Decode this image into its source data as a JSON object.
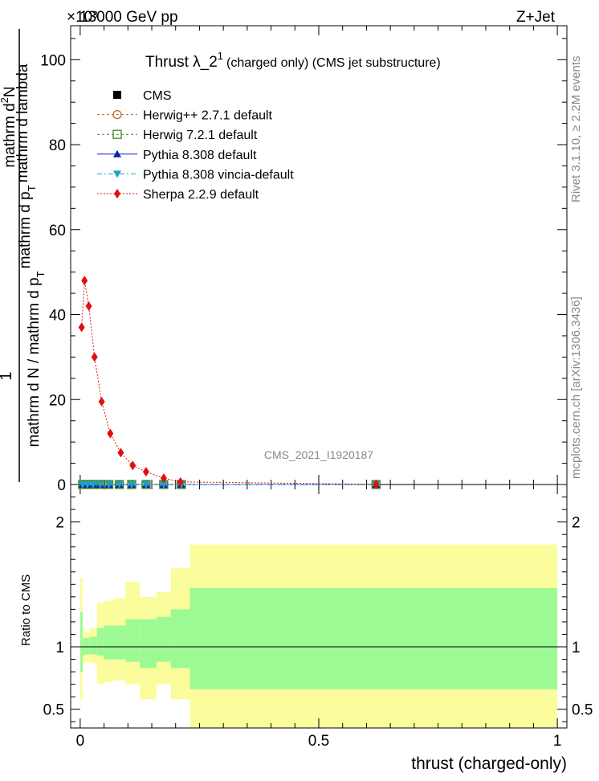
{
  "header": {
    "left": "13000 GeV pp",
    "right": "Z+Jet",
    "exponent": "×10³"
  },
  "side_text": {
    "rivet": "Rivet 3.1.10, ≥ 2.2M events",
    "mcplots": "mcplots.cern.ch [arXiv:1306.3436]"
  },
  "chart_data": [
    {
      "type": "line",
      "title": "Thrust λ_2¹",
      "title_main": "Thrust λ_2",
      "title_sup": "1",
      "title_suffix": "(charged only) (CMS jet substructure)",
      "watermark": "CMS_2021_I1920187",
      "ylabel_numerator": "mathrm d²N",
      "ylabel_denominator": "mathrm d N / mathrm d p_T mathrm d p_T mathrm d lambda",
      "ylabel_parts": {
        "one": "1",
        "den_a": "mathrm d N / mathrm d p",
        "den_sub": "T",
        "den_b": "mathrm d p",
        "den_sub2": "T",
        "den_c": "mathrm d lambda",
        "num": "mathrm d",
        "num_sup": "2",
        "num_b": "N"
      },
      "xlim": [
        -0.02,
        1.02
      ],
      "ylim": [
        0,
        108
      ],
      "y_scale_factor": 1000,
      "yticks": [
        0,
        20,
        40,
        60,
        80,
        100
      ],
      "legend_position": "top-left",
      "series": [
        {
          "name": "CMS",
          "color": "#000000",
          "marker": "square-filled",
          "x": [],
          "y": []
        },
        {
          "name": "Herwig++ 2.7.1 default",
          "color": "#b8682c",
          "marker": "circle-open",
          "x": [
            0.005,
            0.015,
            0.027,
            0.042,
            0.06,
            0.082,
            0.108,
            0.138,
            0.175,
            0.212,
            0.62
          ],
          "y": [
            0,
            0,
            0,
            0,
            0,
            0,
            0,
            0,
            0,
            0,
            0
          ]
        },
        {
          "name": "Herwig 7.2.1 default",
          "color": "#3d8c1e",
          "marker": "square-open",
          "x": [
            0.005,
            0.015,
            0.027,
            0.042,
            0.06,
            0.082,
            0.108,
            0.138,
            0.175,
            0.212,
            0.62
          ],
          "y": [
            0,
            0,
            0,
            0,
            0,
            0,
            0,
            0,
            0,
            0,
            0
          ]
        },
        {
          "name": "Pythia 8.308 default",
          "color": "#0a1fb8",
          "marker": "triangle-up",
          "x": [
            0.005,
            0.015,
            0.027,
            0.042,
            0.06,
            0.082,
            0.108,
            0.138,
            0.175,
            0.212,
            0.62
          ],
          "y": [
            0,
            0,
            0,
            0,
            0,
            0,
            0,
            0,
            0,
            0,
            0
          ]
        },
        {
          "name": "Pythia 8.308 vincia-default",
          "color": "#1aa2c2",
          "marker": "triangle-down",
          "x": [
            0.005,
            0.015,
            0.027,
            0.042,
            0.06,
            0.082,
            0.108,
            0.138,
            0.175,
            0.212,
            0.62
          ],
          "y": [
            0,
            0,
            0,
            0,
            0,
            0,
            0,
            0,
            0,
            0,
            0
          ]
        },
        {
          "name": "Sherpa 2.2.9 default",
          "color": "#e01010",
          "marker": "diamond",
          "x": [
            0.003,
            0.009,
            0.018,
            0.03,
            0.045,
            0.063,
            0.085,
            0.11,
            0.138,
            0.175,
            0.21,
            0.62
          ],
          "y": [
            37,
            48,
            42,
            30,
            19.5,
            12,
            7.5,
            4.5,
            3,
            1.5,
            0.6,
            0.05
          ]
        }
      ]
    },
    {
      "type": "area",
      "ylabel": "Ratio to CMS",
      "xlabel": "thrust (charged-only)",
      "xlim": [
        -0.02,
        1.02
      ],
      "ylim": [
        0.35,
        2.3
      ],
      "yticks": [
        0.5,
        1,
        2
      ],
      "xticks": [
        0,
        0.5,
        1
      ],
      "bands": {
        "bin_edges": [
          0,
          0.005,
          0.01,
          0.02,
          0.035,
          0.05,
          0.07,
          0.095,
          0.125,
          0.16,
          0.19,
          0.23,
          1.0
        ],
        "stat_low": [
          0.8,
          0.93,
          0.94,
          0.94,
          0.93,
          0.9,
          0.9,
          0.88,
          0.83,
          0.88,
          0.83,
          0.66
        ],
        "stat_high": [
          1.28,
          1.07,
          1.07,
          1.08,
          1.15,
          1.17,
          1.17,
          1.22,
          1.22,
          1.24,
          1.3,
          1.47
        ],
        "total_low": [
          0.57,
          0.86,
          0.88,
          0.87,
          0.7,
          0.72,
          0.73,
          0.7,
          0.58,
          0.7,
          0.58,
          0.33
        ],
        "total_high": [
          1.55,
          1.13,
          1.12,
          1.15,
          1.35,
          1.37,
          1.39,
          1.52,
          1.4,
          1.44,
          1.63,
          1.82
        ],
        "stat_color": "#9cfa94",
        "total_color": "#fbfc9c"
      },
      "reference_line": 1
    }
  ]
}
